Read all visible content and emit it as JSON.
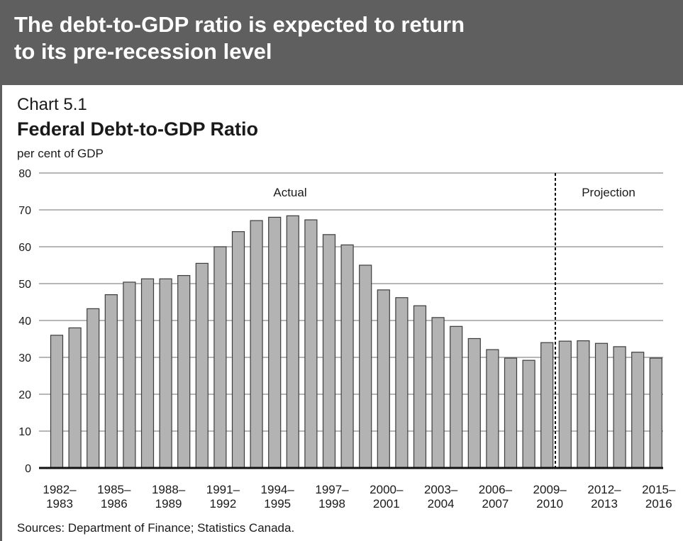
{
  "headline": {
    "line1": "The debt-to-GDP ratio is expected to return",
    "line2": "to its pre-recession level"
  },
  "chart_label": "Chart 5.1",
  "source": "Sources: Department of Finance; Statistics Canada.",
  "colors": {
    "banner": "#5f5f5f",
    "bar_fill": "#b3b3b3",
    "bar_stroke": "#3c3c3c",
    "grid": "#8c8c8c",
    "axis": "#111111"
  },
  "chart_data": {
    "type": "bar",
    "title": "Federal Debt-to-GDP Ratio",
    "ylabel": "per cent of GDP",
    "xlabel": "",
    "ylim": [
      0,
      80
    ],
    "yticks": [
      0,
      10,
      20,
      30,
      40,
      50,
      60,
      70,
      80
    ],
    "grid": true,
    "categories": [
      "1982–1983",
      "1983–1984",
      "1984–1985",
      "1985–1986",
      "1986–1987",
      "1987–1988",
      "1988–1989",
      "1989–1990",
      "1990–1991",
      "1991–1992",
      "1992–1993",
      "1993–1994",
      "1994–1995",
      "1995–1996",
      "1996–1997",
      "1997–1998",
      "1998–1999",
      "1999–2000",
      "2000–2001",
      "2001–2002",
      "2002–2003",
      "2003–2004",
      "2004–2005",
      "2005–2006",
      "2006–2007",
      "2007–2008",
      "2008–2009",
      "2009–2010",
      "2010–2011",
      "2011–2012",
      "2012–2013",
      "2013–2014",
      "2014–2015",
      "2015–2016"
    ],
    "values": [
      36.0,
      38.0,
      43.2,
      47.0,
      50.4,
      51.3,
      51.3,
      52.2,
      55.5,
      60.0,
      64.1,
      67.1,
      68.0,
      68.4,
      67.3,
      63.3,
      60.5,
      55.0,
      48.3,
      46.2,
      44.0,
      40.8,
      38.4,
      35.1,
      32.1,
      29.8,
      29.2,
      34.0,
      34.4,
      34.5,
      33.8,
      32.9,
      31.4,
      29.8
    ],
    "xtick_labels": [
      {
        "index": 0,
        "top": "1982–",
        "bottom": "1983"
      },
      {
        "index": 3,
        "top": "1985–",
        "bottom": "1986"
      },
      {
        "index": 6,
        "top": "1988–",
        "bottom": "1989"
      },
      {
        "index": 9,
        "top": "1991–",
        "bottom": "1992"
      },
      {
        "index": 12,
        "top": "1994–",
        "bottom": "1995"
      },
      {
        "index": 15,
        "top": "1997–",
        "bottom": "1998"
      },
      {
        "index": 18,
        "top": "2000–",
        "bottom": "2001"
      },
      {
        "index": 21,
        "top": "2003–",
        "bottom": "2004"
      },
      {
        "index": 24,
        "top": "2006–",
        "bottom": "2007"
      },
      {
        "index": 27,
        "top": "2009–",
        "bottom": "2010"
      },
      {
        "index": 30,
        "top": "2012–",
        "bottom": "2013"
      },
      {
        "index": 33,
        "top": "2015–",
        "bottom": "2016"
      }
    ],
    "annotations": [
      {
        "text": "Actual",
        "region": "left"
      },
      {
        "text": "Projection",
        "region": "right"
      }
    ],
    "divider_after_category": "2009–2010"
  }
}
